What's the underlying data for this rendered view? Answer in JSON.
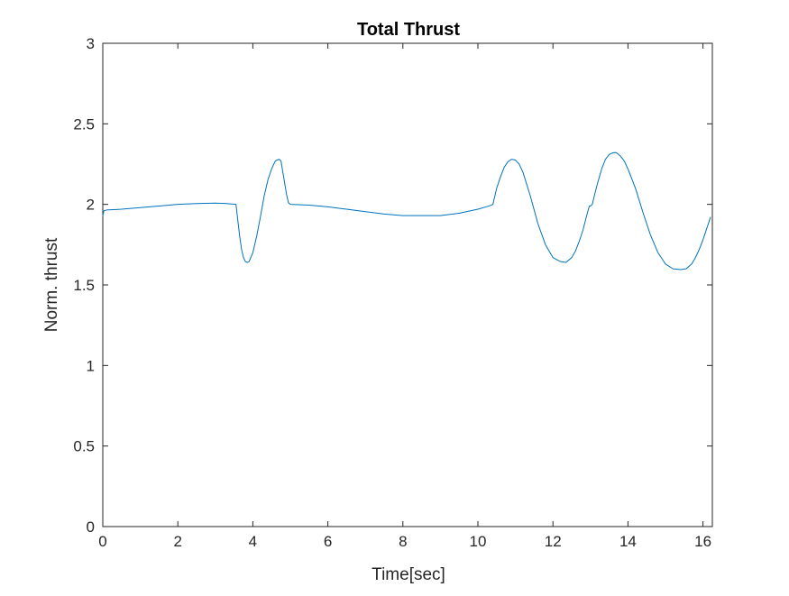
{
  "chart_data": {
    "type": "line",
    "title": "Total Thrust",
    "xlabel": "Time[sec]",
    "ylabel": "Norm. thrust",
    "xlim": [
      0,
      16.25
    ],
    "ylim": [
      0,
      3
    ],
    "xticks": [
      0,
      2,
      4,
      6,
      8,
      10,
      12,
      14,
      16
    ],
    "xtick_labels": [
      "0",
      "2",
      "4",
      "6",
      "8",
      "10",
      "12",
      "14",
      "16"
    ],
    "yticks": [
      0,
      0.5,
      1,
      1.5,
      2,
      2.5,
      3
    ],
    "ytick_labels": [
      "0",
      "0.5",
      "1",
      "1.5",
      "2",
      "2.5",
      "3"
    ],
    "grid": false,
    "series": [
      {
        "color": "#0072BD",
        "x": [
          0,
          0.03,
          0.1,
          0.5,
          1.0,
          1.5,
          2.0,
          2.5,
          3.0,
          3.3,
          3.55,
          3.6,
          3.65,
          3.7,
          3.75,
          3.8,
          3.85,
          3.9,
          4.0,
          4.1,
          4.2,
          4.3,
          4.4,
          4.5,
          4.6,
          4.7,
          4.75,
          4.8,
          4.85,
          4.9,
          4.95,
          5.0,
          5.5,
          6.0,
          6.5,
          7.0,
          7.5,
          8.0,
          8.5,
          9.0,
          9.5,
          10.0,
          10.3,
          10.4,
          10.5,
          10.6,
          10.7,
          10.8,
          10.9,
          11.0,
          11.1,
          11.2,
          11.4,
          11.6,
          11.8,
          12.0,
          12.2,
          12.35,
          12.5,
          12.6,
          12.7,
          12.8,
          12.9,
          12.97,
          13.0,
          13.05,
          13.1,
          13.2,
          13.3,
          13.4,
          13.5,
          13.6,
          13.65,
          13.7,
          13.8,
          13.9,
          14.0,
          14.2,
          14.4,
          14.6,
          14.8,
          15.0,
          15.2,
          15.4,
          15.55,
          15.7,
          15.8,
          15.9,
          16.0,
          16.1,
          16.2
        ],
        "y": [
          1.93,
          1.96,
          1.965,
          1.97,
          1.98,
          1.99,
          2.0,
          2.005,
          2.008,
          2.005,
          2.0,
          1.9,
          1.8,
          1.72,
          1.67,
          1.645,
          1.64,
          1.645,
          1.7,
          1.8,
          1.92,
          2.05,
          2.15,
          2.22,
          2.27,
          2.28,
          2.27,
          2.2,
          2.13,
          2.06,
          2.01,
          2.0,
          1.995,
          1.985,
          1.97,
          1.955,
          1.94,
          1.93,
          1.93,
          1.93,
          1.945,
          1.97,
          1.99,
          2.0,
          2.1,
          2.17,
          2.23,
          2.265,
          2.28,
          2.275,
          2.25,
          2.2,
          2.05,
          1.88,
          1.75,
          1.67,
          1.645,
          1.64,
          1.67,
          1.71,
          1.77,
          1.84,
          1.93,
          1.99,
          1.99,
          2.0,
          2.05,
          2.14,
          2.22,
          2.28,
          2.31,
          2.32,
          2.322,
          2.32,
          2.3,
          2.27,
          2.22,
          2.1,
          1.95,
          1.81,
          1.7,
          1.63,
          1.6,
          1.595,
          1.6,
          1.63,
          1.67,
          1.72,
          1.78,
          1.85,
          1.92
        ]
      }
    ]
  }
}
